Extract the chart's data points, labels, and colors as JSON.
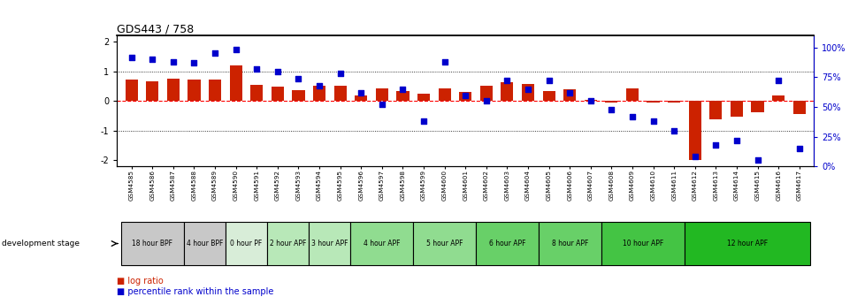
{
  "title": "GDS443 / 758",
  "samples": [
    "GSM4585",
    "GSM4586",
    "GSM4587",
    "GSM4588",
    "GSM4589",
    "GSM4590",
    "GSM4591",
    "GSM4592",
    "GSM4593",
    "GSM4594",
    "GSM4595",
    "GSM4596",
    "GSM4597",
    "GSM4598",
    "GSM4599",
    "GSM4600",
    "GSM4601",
    "GSM4602",
    "GSM4603",
    "GSM4604",
    "GSM4605",
    "GSM4606",
    "GSM4607",
    "GSM4608",
    "GSM4609",
    "GSM4610",
    "GSM4611",
    "GSM4612",
    "GSM4613",
    "GSM4614",
    "GSM4615",
    "GSM4616",
    "GSM4617"
  ],
  "log_ratio": [
    0.72,
    0.65,
    0.75,
    0.72,
    0.72,
    1.2,
    0.55,
    0.48,
    0.35,
    0.52,
    0.52,
    0.2,
    0.42,
    0.32,
    0.25,
    0.42,
    0.3,
    0.52,
    0.62,
    0.58,
    0.32,
    0.38,
    0.05,
    -0.04,
    0.42,
    -0.06,
    -0.04,
    -2.0,
    -0.62,
    -0.52,
    -0.38,
    0.18,
    -0.45
  ],
  "percentile": [
    92,
    90,
    88,
    87,
    95,
    98,
    82,
    80,
    74,
    68,
    78,
    62,
    52,
    65,
    38,
    88,
    60,
    55,
    72,
    65,
    72,
    62,
    55,
    48,
    42,
    38,
    30,
    8,
    18,
    22,
    5,
    72,
    15
  ],
  "stages": [
    {
      "label": "18 hour BPF",
      "start": 0,
      "end": 3,
      "color": "#c8c8c8"
    },
    {
      "label": "4 hour BPF",
      "start": 3,
      "end": 5,
      "color": "#c8c8c8"
    },
    {
      "label": "0 hour PF",
      "start": 5,
      "end": 7,
      "color": "#d8edd8"
    },
    {
      "label": "2 hour APF",
      "start": 7,
      "end": 9,
      "color": "#b8e8b8"
    },
    {
      "label": "3 hour APF",
      "start": 9,
      "end": 11,
      "color": "#b8e8b8"
    },
    {
      "label": "4 hour APF",
      "start": 11,
      "end": 14,
      "color": "#90dc90"
    },
    {
      "label": "5 hour APF",
      "start": 14,
      "end": 17,
      "color": "#90dc90"
    },
    {
      "label": "6 hour APF",
      "start": 17,
      "end": 20,
      "color": "#68d068"
    },
    {
      "label": "8 hour APF",
      "start": 20,
      "end": 23,
      "color": "#68d068"
    },
    {
      "label": "10 hour APF",
      "start": 23,
      "end": 27,
      "color": "#44c444"
    },
    {
      "label": "12 hour APF",
      "start": 27,
      "end": 33,
      "color": "#22b822"
    }
  ],
  "bar_color": "#cc2200",
  "dot_color": "#0000cc",
  "ylim": [
    -2.2,
    2.2
  ],
  "y2lim": [
    0,
    110
  ],
  "yticks": [
    -2,
    -1,
    0,
    1,
    2
  ],
  "y2ticks": [
    0,
    25,
    50,
    75,
    100
  ],
  "y2ticklabels": [
    "0%",
    "25%",
    "50%",
    "75%",
    "100%"
  ],
  "dotted_line_y": [
    1.0,
    -1.0
  ],
  "title_fontsize": 9,
  "bar_color_legend": "#cc2200",
  "dot_color_legend": "#0000cc",
  "legend_log": "log ratio",
  "legend_pct": "percentile rank within the sample",
  "dev_stage_label": "development stage"
}
